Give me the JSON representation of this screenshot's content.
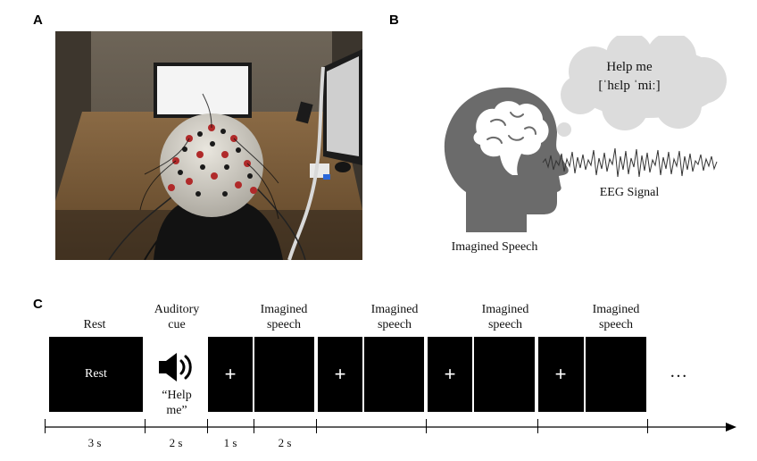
{
  "panels": {
    "a": "A",
    "b": "B",
    "c": "C"
  },
  "panel_b": {
    "bubble_line1": "Help me",
    "bubble_line2": "[ˈhɛlp ˈmiː]",
    "signal_label": "EEG Signal",
    "head_label": "Imagined Speech",
    "colors": {
      "head": "#6b6b6b",
      "cloud": "#dcdcdc",
      "signal": "#333333"
    }
  },
  "panel_c": {
    "rest_label": "Rest",
    "rest_block_text": "Rest",
    "cue_label_line1": "Auditory",
    "cue_label_line2": "cue",
    "cue_icon": "speaker-icon",
    "cue_quote_line1": "“Help",
    "cue_quote_line2": "me”",
    "fixation_symbol": "+",
    "trial_label_line1": "Imagined",
    "trial_label_line2": "speech",
    "ellipsis": "…",
    "durations": [
      "3 s",
      "2 s",
      "1 s",
      "2 s"
    ]
  }
}
